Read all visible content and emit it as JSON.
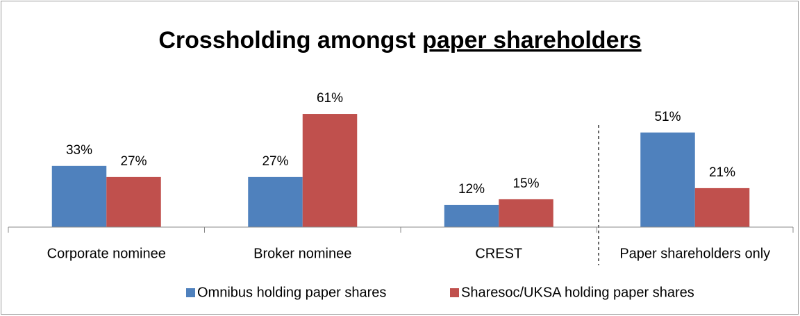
{
  "chart_data": {
    "type": "bar",
    "title": [
      "Crossholding amongst",
      "paper shareholders"
    ],
    "categories": [
      "Corporate nominee",
      "Broker nominee",
      "CREST",
      "Paper shareholders only"
    ],
    "series": [
      {
        "name": "Omnibus holding paper shares",
        "color": "#4f81bd",
        "values": [
          33,
          27,
          12,
          51
        ],
        "value_labels": [
          "33%",
          "27%",
          "12%",
          "51%"
        ]
      },
      {
        "name": "Sharesoc/UKSA holding paper shares",
        "color": "#c0504d",
        "values": [
          27,
          61,
          15,
          21
        ],
        "value_labels": [
          "27%",
          "61%",
          "15%",
          "21%"
        ]
      }
    ],
    "ylim": [
      0,
      70
    ],
    "legend": "bottom"
  }
}
